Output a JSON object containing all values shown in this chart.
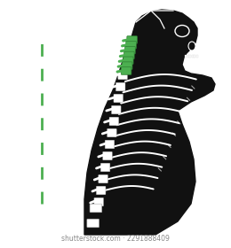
{
  "bg_color": "#ffffff",
  "body_color": "#111111",
  "bone_color": "#ffffff",
  "cervical_color": "#4caf50",
  "cervical_dark": "#2e7d32",
  "dashed_line_color": "#4caf50",
  "watermark": "shutterstock.com · 2291888409",
  "watermark_color": "#888888",
  "watermark_fontsize": 5.5,
  "figsize": [
    2.6,
    2.8
  ],
  "dpi": 100
}
